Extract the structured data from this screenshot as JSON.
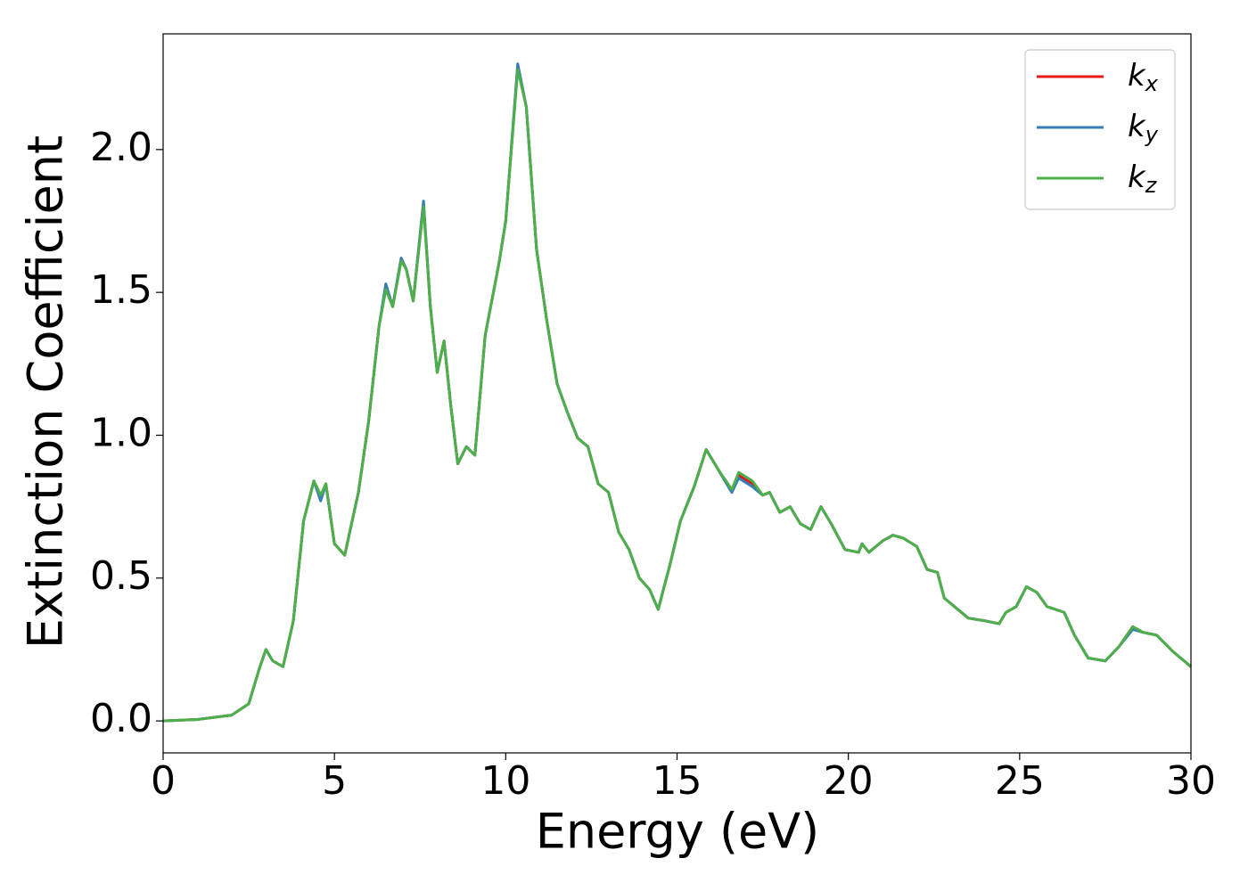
{
  "chart_data": {
    "type": "line",
    "xlabel": "Energy (eV)",
    "ylabel": "Extinction Coefficient",
    "x": [
      0,
      1,
      2,
      2.5,
      2.8,
      3.0,
      3.2,
      3.5,
      3.8,
      4.1,
      4.4,
      4.6,
      4.75,
      5.0,
      5.3,
      5.7,
      6.0,
      6.3,
      6.5,
      6.7,
      6.95,
      7.1,
      7.3,
      7.6,
      7.8,
      8.0,
      8.2,
      8.4,
      8.6,
      8.85,
      9.1,
      9.4,
      9.8,
      10.0,
      10.35,
      10.6,
      10.9,
      11.2,
      11.5,
      11.8,
      12.1,
      12.4,
      12.7,
      13.0,
      13.3,
      13.6,
      13.9,
      14.2,
      14.45,
      14.8,
      15.1,
      15.5,
      15.85,
      16.2,
      16.6,
      16.8,
      17.2,
      17.5,
      17.7,
      18.0,
      18.3,
      18.6,
      18.9,
      19.2,
      19.5,
      19.9,
      20.3,
      20.4,
      20.6,
      21.0,
      21.3,
      21.6,
      22.0,
      22.3,
      22.6,
      22.8,
      23.2,
      23.5,
      24.0,
      24.4,
      24.6,
      24.9,
      25.2,
      25.5,
      25.8,
      26.3,
      26.6,
      27.0,
      27.5,
      27.9,
      28.3,
      28.6,
      29.0,
      29.5,
      30.0
    ],
    "series": [
      {
        "name": "kx",
        "color": "#e41a1c",
        "values": [
          0.0,
          0.005,
          0.02,
          0.06,
          0.18,
          0.25,
          0.21,
          0.19,
          0.35,
          0.7,
          0.84,
          0.78,
          0.83,
          0.62,
          0.58,
          0.8,
          1.05,
          1.38,
          1.52,
          1.45,
          1.62,
          1.58,
          1.47,
          1.81,
          1.45,
          1.22,
          1.33,
          1.1,
          0.9,
          0.96,
          0.93,
          1.35,
          1.6,
          1.75,
          2.29,
          2.15,
          1.65,
          1.4,
          1.18,
          1.08,
          0.99,
          0.96,
          0.83,
          0.8,
          0.66,
          0.6,
          0.5,
          0.46,
          0.39,
          0.55,
          0.7,
          0.82,
          0.95,
          0.88,
          0.8,
          0.86,
          0.83,
          0.79,
          0.8,
          0.73,
          0.75,
          0.69,
          0.67,
          0.75,
          0.69,
          0.6,
          0.59,
          0.62,
          0.59,
          0.63,
          0.65,
          0.64,
          0.61,
          0.53,
          0.52,
          0.43,
          0.39,
          0.36,
          0.35,
          0.34,
          0.38,
          0.4,
          0.47,
          0.45,
          0.4,
          0.38,
          0.3,
          0.22,
          0.21,
          0.26,
          0.33,
          0.31,
          0.3,
          0.24,
          0.19
        ]
      },
      {
        "name": "ky",
        "color": "#377eb8",
        "values": [
          0.0,
          0.005,
          0.02,
          0.06,
          0.18,
          0.25,
          0.21,
          0.19,
          0.35,
          0.7,
          0.84,
          0.77,
          0.83,
          0.62,
          0.58,
          0.8,
          1.05,
          1.38,
          1.53,
          1.45,
          1.62,
          1.58,
          1.47,
          1.82,
          1.45,
          1.22,
          1.33,
          1.1,
          0.9,
          0.96,
          0.93,
          1.35,
          1.6,
          1.75,
          2.3,
          2.15,
          1.65,
          1.4,
          1.18,
          1.08,
          0.99,
          0.96,
          0.83,
          0.8,
          0.66,
          0.6,
          0.5,
          0.46,
          0.39,
          0.55,
          0.7,
          0.82,
          0.95,
          0.88,
          0.8,
          0.85,
          0.82,
          0.79,
          0.8,
          0.73,
          0.75,
          0.69,
          0.67,
          0.75,
          0.69,
          0.6,
          0.59,
          0.62,
          0.59,
          0.63,
          0.65,
          0.64,
          0.61,
          0.53,
          0.52,
          0.43,
          0.39,
          0.36,
          0.35,
          0.34,
          0.38,
          0.4,
          0.47,
          0.45,
          0.4,
          0.38,
          0.3,
          0.22,
          0.21,
          0.26,
          0.32,
          0.31,
          0.3,
          0.24,
          0.19
        ]
      },
      {
        "name": "kz",
        "color": "#4daf4a",
        "values": [
          0.0,
          0.005,
          0.02,
          0.06,
          0.18,
          0.25,
          0.21,
          0.19,
          0.35,
          0.7,
          0.84,
          0.79,
          0.83,
          0.62,
          0.58,
          0.8,
          1.05,
          1.38,
          1.51,
          1.45,
          1.61,
          1.58,
          1.47,
          1.8,
          1.45,
          1.22,
          1.33,
          1.1,
          0.9,
          0.96,
          0.93,
          1.35,
          1.6,
          1.75,
          2.28,
          2.15,
          1.65,
          1.4,
          1.18,
          1.08,
          0.99,
          0.96,
          0.83,
          0.8,
          0.66,
          0.6,
          0.5,
          0.46,
          0.39,
          0.55,
          0.7,
          0.82,
          0.95,
          0.88,
          0.81,
          0.87,
          0.84,
          0.79,
          0.8,
          0.73,
          0.75,
          0.69,
          0.67,
          0.75,
          0.69,
          0.6,
          0.59,
          0.62,
          0.59,
          0.63,
          0.65,
          0.64,
          0.61,
          0.53,
          0.52,
          0.43,
          0.39,
          0.36,
          0.35,
          0.34,
          0.38,
          0.4,
          0.47,
          0.45,
          0.4,
          0.38,
          0.3,
          0.22,
          0.21,
          0.26,
          0.33,
          0.31,
          0.3,
          0.24,
          0.19
        ]
      }
    ],
    "xlim": [
      0,
      30
    ],
    "xticks": [
      0,
      5,
      10,
      15,
      20,
      25,
      30
    ],
    "ylim": [
      -0.112,
      2.405
    ],
    "yticks": [
      {
        "value": 0,
        "label": "0.0"
      },
      0.5,
      {
        "value": 1,
        "label": "1.0"
      },
      1.5,
      {
        "value": 2,
        "label": "2.0"
      }
    ],
    "legend": "upper right"
  }
}
